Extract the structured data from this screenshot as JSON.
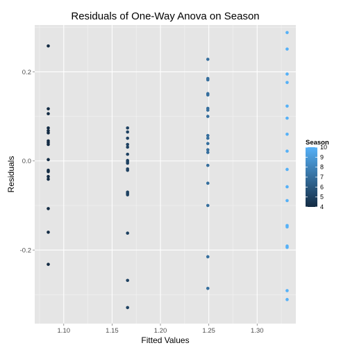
{
  "chart_data": {
    "type": "scatter",
    "title": "Residuals of One-Way Anova on Season",
    "xlabel": "Fitted Values",
    "ylabel": "Residuals",
    "xlim": [
      1.07,
      1.34
    ],
    "ylim": [
      -0.365,
      0.305
    ],
    "x_ticks": [
      1.1,
      1.15,
      1.2,
      1.25,
      1.3
    ],
    "x_tick_labels": [
      "1.10",
      "1.15",
      "1.20",
      "1.25",
      "1.30"
    ],
    "y_ticks": [
      -0.2,
      0.0,
      0.2
    ],
    "y_tick_labels": [
      "-0.2",
      "0.0",
      "0.2"
    ],
    "grid": true,
    "background": "#e5e5e5",
    "legend": {
      "title": "Season",
      "position": "right",
      "min": 4,
      "max": 10,
      "breaks": [
        10,
        9,
        8,
        7,
        6,
        5,
        4
      ],
      "break_labels": [
        "10",
        "9",
        "8",
        "7",
        "6",
        "5",
        "4"
      ],
      "low_color": "#132b43",
      "high_color": "#56b1f7"
    },
    "series": [
      {
        "season": 4,
        "x": 1.084,
        "y": [
          0.258,
          0.117,
          0.106,
          0.074,
          0.068,
          0.063,
          0.045,
          0.041,
          0.037,
          0.003,
          -0.021,
          -0.024,
          -0.035,
          -0.041,
          -0.107,
          -0.16,
          -0.232
        ]
      },
      {
        "season": 5,
        "x": 1.166,
        "y": [
          0.074,
          0.065,
          0.051,
          0.037,
          0.031,
          0.015,
          0.001,
          -0.002,
          -0.005,
          -0.018,
          -0.021,
          -0.07,
          -0.073,
          -0.076,
          -0.162,
          -0.268,
          -0.329
        ]
      },
      {
        "season": 7,
        "x": 1.249,
        "y": [
          0.228,
          0.185,
          0.182,
          0.151,
          0.148,
          0.118,
          0.114,
          0.1,
          0.057,
          0.051,
          0.039,
          0.025,
          0.019,
          -0.01,
          -0.05,
          -0.1,
          -0.215,
          -0.286
        ]
      },
      {
        "season": 10,
        "x": 1.331,
        "y": [
          0.288,
          0.251,
          0.195,
          0.176,
          0.123,
          0.096,
          0.06,
          0.022,
          -0.019,
          -0.058,
          -0.089,
          -0.145,
          -0.148,
          -0.191,
          -0.194,
          -0.291,
          -0.311
        ]
      }
    ]
  }
}
